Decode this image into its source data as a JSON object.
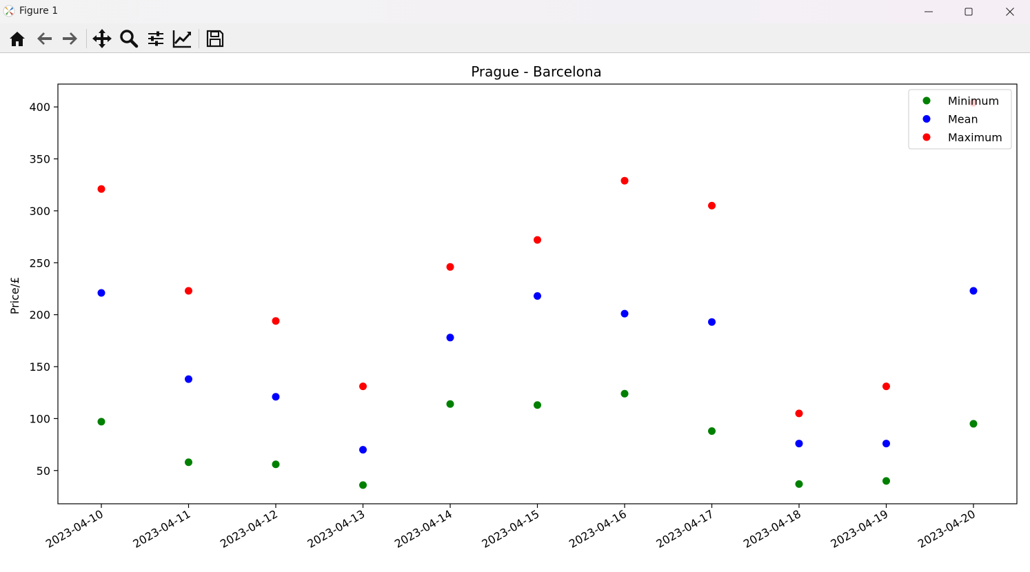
{
  "window": {
    "title": "Figure 1",
    "icon": "matplotlib-icon",
    "controls": [
      "minimize-icon",
      "maximize-icon",
      "close-icon"
    ]
  },
  "toolbar": {
    "tools": [
      {
        "name": "home-icon"
      },
      {
        "name": "back-icon"
      },
      {
        "name": "forward-icon"
      },
      {
        "name": "pan-icon"
      },
      {
        "name": "zoom-icon"
      },
      {
        "name": "configure-subplots-icon"
      },
      {
        "name": "edit-axis-icon"
      },
      {
        "name": "save-icon"
      }
    ]
  },
  "chart_data": {
    "type": "scatter",
    "title": "Prague - Barcelona",
    "xlabel": "",
    "ylabel": "Price/£",
    "categories": [
      "2023-04-10",
      "2023-04-11",
      "2023-04-12",
      "2023-04-13",
      "2023-04-14",
      "2023-04-15",
      "2023-04-16",
      "2023-04-17",
      "2023-04-18",
      "2023-04-19",
      "2023-04-20"
    ],
    "yticks": [
      50,
      100,
      150,
      200,
      250,
      300,
      350,
      400
    ],
    "ylim": [
      18,
      422
    ],
    "grid": false,
    "legend_position": "top-right",
    "series": [
      {
        "name": "Minimum",
        "color": "#008000",
        "values": [
          97,
          58,
          56,
          36,
          114,
          113,
          124,
          88,
          37,
          40,
          95
        ]
      },
      {
        "name": "Mean",
        "color": "#0000ff",
        "values": [
          221,
          138,
          121,
          70,
          178,
          218,
          201,
          193,
          76,
          76,
          223
        ]
      },
      {
        "name": "Maximum",
        "color": "#ff0000",
        "values": [
          321,
          223,
          194,
          131,
          246,
          272,
          329,
          305,
          105,
          131,
          404
        ]
      }
    ]
  }
}
